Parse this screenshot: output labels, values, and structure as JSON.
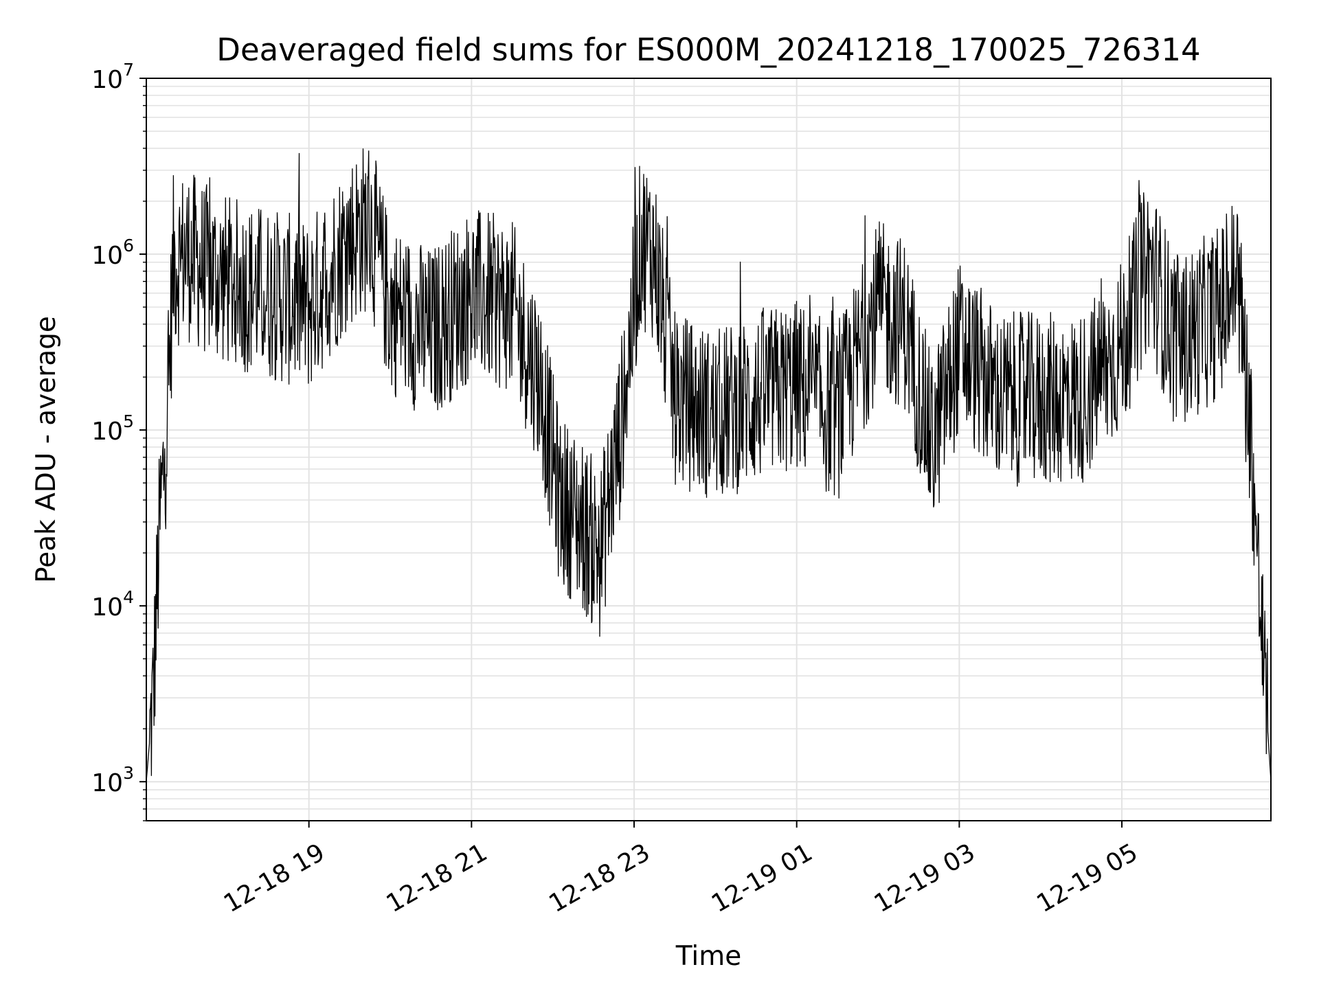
{
  "chart_data": {
    "type": "line",
    "title": "Deaveraged field sums for ES000M_20241218_170025_726314",
    "xlabel": "Time",
    "ylabel": "Peak ADU - average",
    "yscale": "log",
    "ylim": [
      600,
      10000000
    ],
    "xlim": [
      "2024-12-18 17:00",
      "2024-12-19 06:50"
    ],
    "grid": true,
    "line_color": "#000000",
    "grid_color": "#e3e3e3",
    "x_ticks": [
      {
        "value": "2024-12-18 19:00",
        "label": "12-18 19"
      },
      {
        "value": "2024-12-18 21:00",
        "label": "12-18 21"
      },
      {
        "value": "2024-12-18 23:00",
        "label": "12-18 23"
      },
      {
        "value": "2024-12-19 01:00",
        "label": "12-19 01"
      },
      {
        "value": "2024-12-19 03:00",
        "label": "12-19 03"
      },
      {
        "value": "2024-12-19 05:00",
        "label": "12-19 05"
      }
    ],
    "y_ticks": [
      {
        "value": 1000,
        "base": "10",
        "exp": "3"
      },
      {
        "value": 10000,
        "base": "10",
        "exp": "4"
      },
      {
        "value": 100000,
        "base": "10",
        "exp": "5"
      },
      {
        "value": 1000000,
        "base": "10",
        "exp": "6"
      },
      {
        "value": 10000000,
        "base": "10",
        "exp": "7"
      }
    ],
    "series": [
      {
        "x": [
          "2024-12-18 17:00",
          "2024-12-18 17:05",
          "2024-12-18 17:10",
          "2024-12-18 17:15",
          "2024-12-18 17:20",
          "2024-12-18 17:30",
          "2024-12-18 17:45",
          "2024-12-18 18:00",
          "2024-12-18 18:30",
          "2024-12-18 19:00",
          "2024-12-18 19:30",
          "2024-12-18 19:45",
          "2024-12-18 20:00",
          "2024-12-18 20:30",
          "2024-12-18 21:00",
          "2024-12-18 21:30",
          "2024-12-18 21:50",
          "2024-12-18 22:05",
          "2024-12-18 22:20",
          "2024-12-18 22:35",
          "2024-12-18 22:50",
          "2024-12-18 23:05",
          "2024-12-18 23:15",
          "2024-12-18 23:30",
          "2024-12-19 00:00",
          "2024-12-19 00:30",
          "2024-12-19 01:00",
          "2024-12-19 01:30",
          "2024-12-19 02:00",
          "2024-12-19 02:20",
          "2024-12-19 02:40",
          "2024-12-19 03:00",
          "2024-12-19 03:30",
          "2024-12-19 04:00",
          "2024-12-19 04:30",
          "2024-12-19 05:00",
          "2024-12-19 05:20",
          "2024-12-19 05:40",
          "2024-12-19 06:00",
          "2024-12-19 06:15",
          "2024-12-19 06:25",
          "2024-12-19 06:35",
          "2024-12-19 06:42",
          "2024-12-19 06:50"
        ],
        "y": [
          1000,
          3000,
          30000,
          100000,
          900000,
          1000000,
          800000,
          700000,
          600000,
          500000,
          1200000,
          1500000,
          500000,
          350000,
          600000,
          500000,
          200000,
          40000,
          30000,
          20000,
          100000,
          1200000,
          1000000,
          150000,
          120000,
          150000,
          180000,
          120000,
          500000,
          400000,
          80000,
          300000,
          150000,
          150000,
          150000,
          300000,
          900000,
          300000,
          400000,
          500000,
          800000,
          100000,
          10000,
          1000
        ]
      }
    ]
  }
}
